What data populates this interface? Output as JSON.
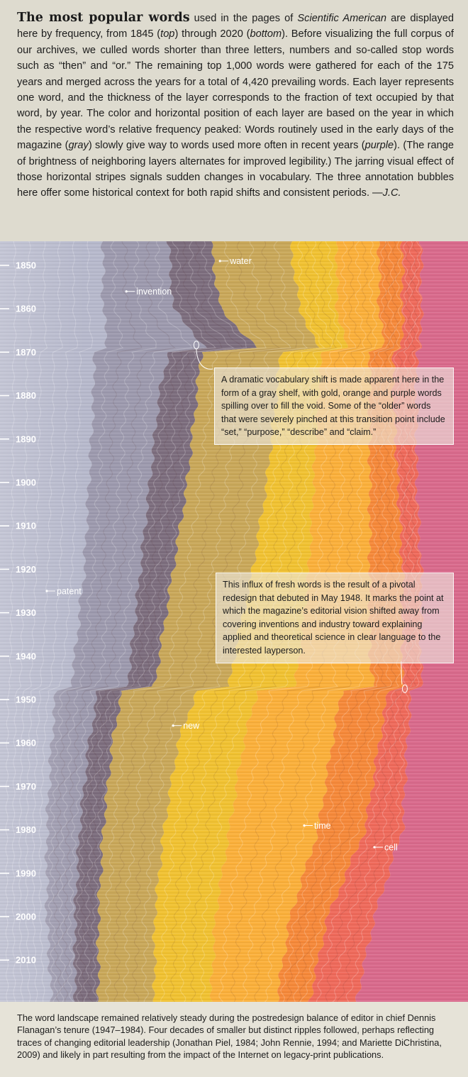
{
  "intro": {
    "bold_lead": "The most popular words",
    "text_1": " used in the pages of ",
    "italic_1": "Scientific American",
    "text_2": " are displayed here by frequency, from 1845 (",
    "italic_2": "top",
    "text_3": ") through 2020 (",
    "italic_3": "bottom",
    "text_4": "). Before visualizing the full corpus of our archives, we culled words shorter than three letters, numbers and so-called stop words such as “then” and “or.” The remaining top 1,000 words were gathered for each of the 175 years and merged across the years for a total of 4,420 prevailing words. Each layer represents one word, and the thickness of the layer corresponds to the fraction of text occupied by that word, by year. The color and horizontal position of each layer are based on the year in which the respective word’s relative frequency peaked: Words routinely used in the early days of the magazine (",
    "italic_4": "gray",
    "text_5": ") slowly give way to words used more often in recent years (",
    "italic_5": "purple",
    "text_6": "). (The range of brightness of neighboring layers alternates for improved legibility.) The jarring visual effect of those horizontal stripes signals sudden changes in vocabulary. The three annotation bubbles here offer some historical context for both rapid shifts and consistent periods. —",
    "signature": "J.C."
  },
  "chart_data": {
    "type": "area",
    "year_range": [
      1845,
      2020
    ],
    "y_ticks": [
      "1850",
      "1860",
      "1870",
      "1880",
      "1890",
      "1900",
      "1910",
      "1920",
      "1930",
      "1940",
      "1950",
      "1960",
      "1970",
      "1980",
      "1990",
      "2000",
      "2010"
    ],
    "color_scale": [
      "#b7b9cc",
      "#9d9aae",
      "#7d6e7e",
      "#c9a85a",
      "#f1c232",
      "#fbb03b",
      "#f6893a",
      "#ef6a5b",
      "#d96a8c",
      "#9b7ec2",
      "#7d6cb8"
    ],
    "boundaries": [
      {
        "id": "gray-light",
        "x": [
          [
            1845,
            0.22
          ],
          [
            1860,
            0.22
          ],
          [
            1869,
            0.23
          ],
          [
            1870,
            0.2
          ],
          [
            1880,
            0.2
          ],
          [
            1900,
            0.19
          ],
          [
            1920,
            0.18
          ],
          [
            1940,
            0.16
          ],
          [
            1947,
            0.15
          ],
          [
            1948,
            0.12
          ],
          [
            1960,
            0.11
          ],
          [
            1980,
            0.1
          ],
          [
            2000,
            0.1
          ],
          [
            2020,
            0.11
          ]
        ]
      },
      {
        "id": "gray-dark",
        "x": [
          [
            1845,
            0.36
          ],
          [
            1860,
            0.37
          ],
          [
            1869,
            0.44
          ],
          [
            1870,
            0.36
          ],
          [
            1880,
            0.34
          ],
          [
            1900,
            0.32
          ],
          [
            1920,
            0.3
          ],
          [
            1940,
            0.28
          ],
          [
            1947,
            0.27
          ],
          [
            1948,
            0.21
          ],
          [
            1960,
            0.19
          ],
          [
            1980,
            0.17
          ],
          [
            2000,
            0.16
          ],
          [
            2020,
            0.16
          ]
        ]
      },
      {
        "id": "gold",
        "x": [
          [
            1845,
            0.45
          ],
          [
            1860,
            0.47
          ],
          [
            1869,
            0.55
          ],
          [
            1870,
            0.43
          ],
          [
            1880,
            0.42
          ],
          [
            1900,
            0.4
          ],
          [
            1920,
            0.37
          ],
          [
            1940,
            0.34
          ],
          [
            1947,
            0.33
          ],
          [
            1948,
            0.26
          ],
          [
            1960,
            0.24
          ],
          [
            1980,
            0.22
          ],
          [
            2000,
            0.21
          ],
          [
            2020,
            0.21
          ]
        ]
      },
      {
        "id": "yellow",
        "x": [
          [
            1845,
            0.62
          ],
          [
            1860,
            0.64
          ],
          [
            1869,
            0.68
          ],
          [
            1870,
            0.6
          ],
          [
            1880,
            0.59
          ],
          [
            1900,
            0.57
          ],
          [
            1920,
            0.54
          ],
          [
            1940,
            0.5
          ],
          [
            1947,
            0.49
          ],
          [
            1948,
            0.42
          ],
          [
            1960,
            0.38
          ],
          [
            1980,
            0.35
          ],
          [
            2000,
            0.33
          ],
          [
            2020,
            0.33
          ]
        ]
      },
      {
        "id": "orange",
        "x": [
          [
            1845,
            0.72
          ],
          [
            1860,
            0.72
          ],
          [
            1869,
            0.74
          ],
          [
            1870,
            0.69
          ],
          [
            1880,
            0.68
          ],
          [
            1900,
            0.67
          ],
          [
            1920,
            0.66
          ],
          [
            1940,
            0.64
          ],
          [
            1947,
            0.63
          ],
          [
            1948,
            0.55
          ],
          [
            1960,
            0.52
          ],
          [
            1980,
            0.49
          ],
          [
            2000,
            0.46
          ],
          [
            2020,
            0.45
          ]
        ]
      },
      {
        "id": "red",
        "x": [
          [
            1845,
            0.81
          ],
          [
            1860,
            0.81
          ],
          [
            1869,
            0.82
          ],
          [
            1870,
            0.79
          ],
          [
            1880,
            0.79
          ],
          [
            1900,
            0.79
          ],
          [
            1920,
            0.79
          ],
          [
            1940,
            0.79
          ],
          [
            1947,
            0.8
          ],
          [
            1948,
            0.73
          ],
          [
            1960,
            0.71
          ],
          [
            1980,
            0.68
          ],
          [
            2000,
            0.62
          ],
          [
            2020,
            0.59
          ]
        ]
      },
      {
        "id": "magenta",
        "x": [
          [
            1845,
            0.86
          ],
          [
            1860,
            0.86
          ],
          [
            1869,
            0.86
          ],
          [
            1870,
            0.84
          ],
          [
            1880,
            0.84
          ],
          [
            1900,
            0.85
          ],
          [
            1920,
            0.86
          ],
          [
            1940,
            0.86
          ],
          [
            1947,
            0.86
          ],
          [
            1948,
            0.83
          ],
          [
            1960,
            0.81
          ],
          [
            1980,
            0.78
          ],
          [
            2000,
            0.7
          ],
          [
            2020,
            0.66
          ]
        ]
      },
      {
        "id": "violet",
        "x": [
          [
            1845,
            0.9
          ],
          [
            1860,
            0.9
          ],
          [
            1869,
            0.9
          ],
          [
            1870,
            0.89
          ],
          [
            1880,
            0.89
          ],
          [
            1900,
            0.89
          ],
          [
            1920,
            0.9
          ],
          [
            1940,
            0.9
          ],
          [
            1947,
            0.9
          ],
          [
            1948,
            0.88
          ],
          [
            1960,
            0.87
          ],
          [
            1980,
            0.86
          ],
          [
            2000,
            0.8
          ],
          [
            2020,
            0.76
          ]
        ]
      }
    ],
    "word_labels": [
      {
        "word": "water",
        "year": 1849,
        "x": 0.47
      },
      {
        "word": "invention",
        "year": 1856,
        "x": 0.27
      },
      {
        "word": "patent",
        "year": 1925,
        "x": 0.1
      },
      {
        "word": "new",
        "year": 1956,
        "x": 0.37
      },
      {
        "word": "time",
        "year": 1979,
        "x": 0.65
      },
      {
        "word": "cell",
        "year": 1984,
        "x": 0.8
      }
    ],
    "annotations": [
      {
        "id": "shelf",
        "text": "A dramatic vocabulary shift is made apparent here in the form of a gray shelf, with gold, orange and purple words spilling over to fill the void. Some of the “older” words that were severely pinched at this transition point include “set,” “purpose,” “describe” and “claim.”",
        "year": 1869,
        "x": 0.418
      },
      {
        "id": "redesign",
        "text": "This influx of fresh words is the result of a pivotal redesign that debuted in May 1948. It marks the point at which the magazine’s editorial vision shifted away from covering inventions and industry toward explaining applied and theoretical science in clear language to the interested layperson.",
        "year": 1948,
        "x": 0.862
      }
    ]
  },
  "footer": {
    "text": "The word landscape remained relatively steady during the postredesign balance of editor in chief Dennis Flanagan’s tenure (1947–1984). Four decades of smaller but distinct ripples followed, perhaps reflecting traces of changing editorial leadership (Jonathan Piel, 1984; John Rennie, 1994; and Mariette DiChristina, 2009) and likely in part resulting from the impact of the Internet on legacy-print publications."
  }
}
